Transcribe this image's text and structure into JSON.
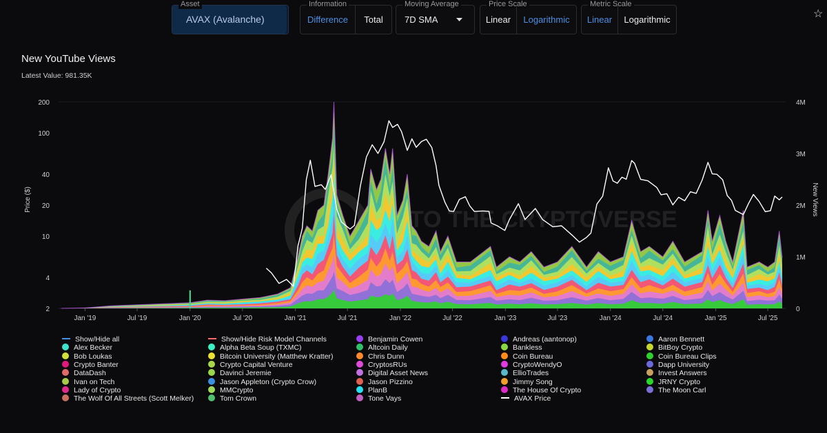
{
  "controls": {
    "asset": {
      "label": "Asset",
      "value": "AVAX (Avalanche)"
    },
    "information": {
      "label": "Information",
      "options": [
        "Difference",
        "Total"
      ],
      "active": "Difference"
    },
    "moving_average": {
      "label": "Moving Average",
      "value": "7D SMA"
    },
    "price_scale": {
      "label": "Price Scale",
      "options": [
        "Linear",
        "Logarithmic"
      ],
      "active": "Logarithmic"
    },
    "metric_scale": {
      "label": "Metric Scale",
      "options": [
        "Linear",
        "Logarithmic"
      ],
      "active": "Linear"
    },
    "favorite_icon": "star-icon"
  },
  "watermark": "INTO THE CRYPTOVERSE",
  "chart_data": {
    "type": "area",
    "title": "New YouTube Views",
    "subtitle": "Latest Value: 981.35K",
    "x_ticks": [
      "Jan '19",
      "Jul '19",
      "Jan '20",
      "Jul '20",
      "Jan '21",
      "Jul '21",
      "Jan '22",
      "Jul '22",
      "Jan '23",
      "Jul '23",
      "Jan '24",
      "Jul '24",
      "Jan '25",
      "Jul '25"
    ],
    "x_range": [
      "2018-10",
      "2025-09"
    ],
    "left_axis": {
      "label": "Price ($)",
      "scale": "logarithmic",
      "ticks": [
        "2",
        "4",
        "10",
        "20",
        "40",
        "100",
        "200"
      ],
      "range": [
        2,
        200
      ]
    },
    "right_axis": {
      "label": "New Views",
      "scale": "linear",
      "ticks": [
        "0",
        "1M",
        "2M",
        "3M",
        "4M"
      ],
      "range": [
        0,
        4000000
      ]
    },
    "price_series": {
      "name": "AVAX Price",
      "color": "#ffffff",
      "points": [
        [
          "2020-09-22",
          4.9
        ],
        [
          "2020-10-10",
          4.4
        ],
        [
          "2020-11-05",
          3.5
        ],
        [
          "2020-12-01",
          3.8
        ],
        [
          "2020-12-25",
          3.3
        ],
        [
          "2021-01-10",
          8
        ],
        [
          "2021-01-25",
          12
        ],
        [
          "2021-02-08",
          35
        ],
        [
          "2021-02-22",
          55
        ],
        [
          "2021-03-10",
          30
        ],
        [
          "2021-04-01",
          32
        ],
        [
          "2021-04-15",
          28
        ],
        [
          "2021-05-05",
          40
        ],
        [
          "2021-05-25",
          18
        ],
        [
          "2021-06-10",
          14
        ],
        [
          "2021-07-10",
          11.5
        ],
        [
          "2021-07-25",
          13
        ],
        [
          "2021-08-15",
          30
        ],
        [
          "2021-09-05",
          60
        ],
        [
          "2021-09-25",
          75
        ],
        [
          "2021-10-15",
          65
        ],
        [
          "2021-11-05",
          80
        ],
        [
          "2021-11-22",
          135
        ],
        [
          "2021-12-05",
          110
        ],
        [
          "2021-12-22",
          125
        ],
        [
          "2022-01-05",
          100
        ],
        [
          "2022-01-25",
          70
        ],
        [
          "2022-02-10",
          85
        ],
        [
          "2022-02-25",
          75
        ],
        [
          "2022-03-15",
          80
        ],
        [
          "2022-04-01",
          90
        ],
        [
          "2022-04-20",
          70
        ],
        [
          "2022-05-05",
          50
        ],
        [
          "2022-05-15",
          30
        ],
        [
          "2022-06-05",
          22
        ],
        [
          "2022-06-20",
          17
        ],
        [
          "2022-07-05",
          18
        ],
        [
          "2022-07-25",
          22
        ],
        [
          "2022-08-15",
          25
        ],
        [
          "2022-08-30",
          19
        ],
        [
          "2022-09-15",
          18
        ],
        [
          "2022-10-15",
          17
        ],
        [
          "2022-11-05",
          18
        ],
        [
          "2022-11-12",
          13
        ],
        [
          "2022-12-05",
          13
        ],
        [
          "2022-12-30",
          11
        ],
        [
          "2023-01-15",
          15
        ],
        [
          "2023-02-15",
          20
        ],
        [
          "2023-03-10",
          15
        ],
        [
          "2023-04-15",
          18
        ],
        [
          "2023-05-10",
          15
        ],
        [
          "2023-06-15",
          12
        ],
        [
          "2023-07-15",
          13
        ],
        [
          "2023-08-20",
          10
        ],
        [
          "2023-09-15",
          9
        ],
        [
          "2023-10-10",
          9.5
        ],
        [
          "2023-10-25",
          11
        ],
        [
          "2023-11-15",
          20
        ],
        [
          "2023-12-05",
          25
        ],
        [
          "2023-12-25",
          45
        ],
        [
          "2024-01-10",
          35
        ],
        [
          "2024-01-25",
          32
        ],
        [
          "2024-02-10",
          38
        ],
        [
          "2024-02-25",
          35
        ],
        [
          "2024-03-15",
          55
        ],
        [
          "2024-03-25",
          50
        ],
        [
          "2024-04-15",
          36
        ],
        [
          "2024-05-10",
          34
        ],
        [
          "2024-06-10",
          30
        ],
        [
          "2024-06-25",
          25
        ],
        [
          "2024-07-15",
          26
        ],
        [
          "2024-08-05",
          20
        ],
        [
          "2024-08-25",
          24
        ],
        [
          "2024-09-15",
          22
        ],
        [
          "2024-10-05",
          27
        ],
        [
          "2024-10-25",
          26
        ],
        [
          "2024-11-15",
          35
        ],
        [
          "2024-12-05",
          52
        ],
        [
          "2024-12-20",
          40
        ],
        [
          "2025-01-05",
          40
        ],
        [
          "2025-01-25",
          35
        ],
        [
          "2025-02-10",
          25
        ],
        [
          "2025-02-25",
          22
        ],
        [
          "2025-03-10",
          18
        ],
        [
          "2025-04-07",
          16
        ],
        [
          "2025-04-25",
          21
        ],
        [
          "2025-05-12",
          25
        ],
        [
          "2025-06-01",
          22
        ],
        [
          "2025-06-22",
          17
        ],
        [
          "2025-07-10",
          18
        ],
        [
          "2025-07-25",
          24
        ],
        [
          "2025-08-10",
          23
        ],
        [
          "2025-08-20",
          24
        ]
      ]
    },
    "views_series": {
      "name": "New YouTube Views (stacked by channel)",
      "points": [
        [
          "2018-10-10",
          0
        ],
        [
          "2019-01-01",
          10000
        ],
        [
          "2019-04-01",
          50000
        ],
        [
          "2019-07-01",
          70000
        ],
        [
          "2019-10-01",
          90000
        ],
        [
          "2020-01-01",
          110000
        ],
        [
          "2020-03-01",
          160000
        ],
        [
          "2020-05-01",
          150000
        ],
        [
          "2020-07-01",
          180000
        ],
        [
          "2020-09-01",
          210000
        ],
        [
          "2020-11-01",
          280000
        ],
        [
          "2020-12-15",
          400000
        ],
        [
          "2021-01-10",
          1000000
        ],
        [
          "2021-01-25",
          1400000
        ],
        [
          "2021-02-10",
          1600000
        ],
        [
          "2021-03-01",
          1500000
        ],
        [
          "2021-03-20",
          1900000
        ],
        [
          "2021-04-10",
          2000000
        ],
        [
          "2021-04-25",
          2600000
        ],
        [
          "2021-05-10",
          3300000
        ],
        [
          "2021-05-15",
          4000000
        ],
        [
          "2021-05-25",
          2200000
        ],
        [
          "2021-06-15",
          1800000
        ],
        [
          "2021-07-10",
          1400000
        ],
        [
          "2021-08-10",
          1700000
        ],
        [
          "2021-09-10",
          2000000
        ],
        [
          "2021-09-20",
          2700000
        ],
        [
          "2021-10-10",
          2300000
        ],
        [
          "2021-10-25",
          2500000
        ],
        [
          "2021-11-10",
          3100000
        ],
        [
          "2021-11-25",
          2600000
        ],
        [
          "2021-12-05",
          3100000
        ],
        [
          "2021-12-20",
          1800000
        ],
        [
          "2022-01-10",
          2100000
        ],
        [
          "2022-01-25",
          2600000
        ],
        [
          "2022-02-10",
          1600000
        ],
        [
          "2022-02-25",
          1500000
        ],
        [
          "2022-03-15",
          1300000
        ],
        [
          "2022-04-10",
          1200000
        ],
        [
          "2022-05-05",
          1500000
        ],
        [
          "2022-05-20",
          1100000
        ],
        [
          "2022-06-15",
          1400000
        ],
        [
          "2022-07-15",
          900000
        ],
        [
          "2022-09-01",
          900000
        ],
        [
          "2022-11-10",
          1200000
        ],
        [
          "2022-12-01",
          800000
        ],
        [
          "2023-01-15",
          1000000
        ],
        [
          "2023-02-20",
          900000
        ],
        [
          "2023-04-01",
          1100000
        ],
        [
          "2023-05-15",
          800000
        ],
        [
          "2023-07-01",
          900000
        ],
        [
          "2023-08-20",
          1200000
        ],
        [
          "2023-10-10",
          800000
        ],
        [
          "2023-11-20",
          1100000
        ],
        [
          "2024-01-01",
          900000
        ],
        [
          "2024-02-15",
          1000000
        ],
        [
          "2024-03-15",
          1700000
        ],
        [
          "2024-04-15",
          1100000
        ],
        [
          "2024-05-15",
          1200000
        ],
        [
          "2024-07-01",
          1000000
        ],
        [
          "2024-08-05",
          1300000
        ],
        [
          "2024-09-15",
          900000
        ],
        [
          "2024-11-15",
          1100000
        ],
        [
          "2024-12-05",
          1900000
        ],
        [
          "2024-12-20",
          1300000
        ],
        [
          "2025-01-15",
          1800000
        ],
        [
          "2025-02-05",
          1300000
        ],
        [
          "2025-03-01",
          900000
        ],
        [
          "2025-04-07",
          1900000
        ],
        [
          "2025-04-20",
          800000
        ],
        [
          "2025-06-01",
          900000
        ],
        [
          "2025-07-01",
          800000
        ],
        [
          "2025-07-25",
          900000
        ],
        [
          "2025-08-10",
          1500000
        ],
        [
          "2025-08-20",
          981350
        ]
      ]
    },
    "annotation": {
      "date": "2020-01-01",
      "value": 350000,
      "color": "#4cd48c"
    },
    "stack_colors": [
      "#2fd12f",
      "#8a6fd8",
      "#e07ad8",
      "#ff9d2b",
      "#ff4d6a",
      "#5ac8fa",
      "#2af0f0",
      "#f7c52c",
      "#b8e35a",
      "#3fb4a0",
      "#a2d84b"
    ],
    "legend": [
      {
        "label": "Show/Hide all",
        "color": "#4a90e2",
        "marker": "line"
      },
      {
        "label": "Show/Hide Risk Model Channels",
        "color": "#ff6b6b",
        "marker": "line"
      },
      {
        "label": "Benjamin Cowen",
        "color": "#9a3ff0",
        "marker": "dot"
      },
      {
        "label": "Andreas (aantonop)",
        "color": "#3838d8",
        "marker": "dot"
      },
      {
        "label": "Aaron Bennett",
        "color": "#3a7ae0",
        "marker": "dot"
      },
      {
        "label": "Alex Becker",
        "color": "#40e0d0",
        "marker": "dot"
      },
      {
        "label": "Alpha Beta Soup (TXMC)",
        "color": "#39f2c8",
        "marker": "dot"
      },
      {
        "label": "Altcoin Daily",
        "color": "#2dbf6a",
        "marker": "dot"
      },
      {
        "label": "Bankless",
        "color": "#8ad840",
        "marker": "dot"
      },
      {
        "label": "BitBoy Crypto",
        "color": "#c7d82c",
        "marker": "dot"
      },
      {
        "label": "Bob Loukas",
        "color": "#cfe03a",
        "marker": "dot"
      },
      {
        "label": "Bitcoin University (Matthew Kratter)",
        "color": "#e8e033",
        "marker": "dot"
      },
      {
        "label": "Chris Dunn",
        "color": "#ff8a2b",
        "marker": "dot"
      },
      {
        "label": "Coin Bureau",
        "color": "#ff8c1a",
        "marker": "dot"
      },
      {
        "label": "Coin Bureau Clips",
        "color": "#2fd12f",
        "marker": "dot"
      },
      {
        "label": "Crypto Banter",
        "color": "#e0197d",
        "marker": "dot"
      },
      {
        "label": "Crypto Capital Venture",
        "color": "#a7d84a",
        "marker": "dot"
      },
      {
        "label": "CryptosRUs",
        "color": "#e04ad8",
        "marker": "dot"
      },
      {
        "label": "CryptoWendyO",
        "color": "#e03ae0",
        "marker": "dot"
      },
      {
        "label": "Dapp University",
        "color": "#6a6ad8",
        "marker": "dot"
      },
      {
        "label": "DataDash",
        "color": "#e06a6a",
        "marker": "dot"
      },
      {
        "label": "Davinci Jeremie",
        "color": "#9ad84a",
        "marker": "dot"
      },
      {
        "label": "Digital Asset News",
        "color": "#c070e0",
        "marker": "dot"
      },
      {
        "label": "EllioTrades",
        "color": "#5ab8c8",
        "marker": "dot"
      },
      {
        "label": "Invest Answers",
        "color": "#c8a060",
        "marker": "dot"
      },
      {
        "label": "Ivan on Tech",
        "color": "#a8c84a",
        "marker": "dot"
      },
      {
        "label": "Jason Appleton (Crypto Crow)",
        "color": "#3a90e0",
        "marker": "dot"
      },
      {
        "label": "Jason Pizzino",
        "color": "#e06050",
        "marker": "dot"
      },
      {
        "label": "Jimmy Song",
        "color": "#f0a02a",
        "marker": "dot"
      },
      {
        "label": "JRNY Crypto",
        "color": "#2ad82a",
        "marker": "dot"
      },
      {
        "label": "Lady of Crypto",
        "color": "#e02a8a",
        "marker": "dot"
      },
      {
        "label": "MMCrypto",
        "color": "#a0d85a",
        "marker": "dot"
      },
      {
        "label": "PlanB",
        "color": "#2ae0f0",
        "marker": "dot"
      },
      {
        "label": "The House Of Crypto",
        "color": "#e02ac8",
        "marker": "dot"
      },
      {
        "label": "The Moon Carl",
        "color": "#7a70d8",
        "marker": "dot"
      },
      {
        "label": "The Wolf Of All Streets (Scott Melker)",
        "color": "#c87060",
        "marker": "dot"
      },
      {
        "label": "Tom Crown",
        "color": "#50c070",
        "marker": "dot"
      },
      {
        "label": "Tone Vays",
        "color": "#c060c0",
        "marker": "dot"
      },
      {
        "label": "AVAX Price",
        "color": "#ffffff",
        "marker": "line"
      }
    ]
  }
}
